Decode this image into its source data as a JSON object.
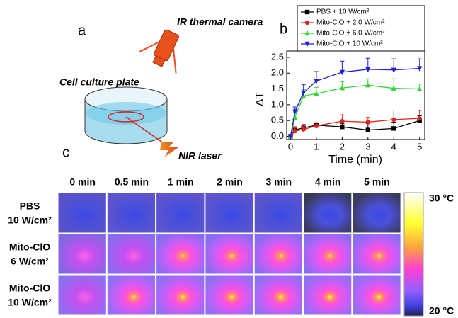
{
  "panel_a": {
    "label": "a",
    "camera": "IR thermal camera",
    "plate": "Cell culture plate",
    "laser": "NIR laser"
  },
  "chart_data": {
    "type": "line",
    "panel_label": "b",
    "xlabel": "Time (min)",
    "ylabel": "ΔT",
    "x": [
      0,
      0.17,
      0.5,
      1,
      2,
      3,
      4,
      5
    ],
    "series": [
      {
        "name": "PBS + 10 W/cm²",
        "color": "#000000",
        "marker": "square",
        "values": [
          0,
          0.2,
          0.27,
          0.35,
          0.3,
          0.2,
          0.25,
          0.5
        ],
        "errors": [
          0.05,
          0.1,
          0.1,
          0.08,
          0.1,
          0.2,
          0.2,
          0.15
        ]
      },
      {
        "name": "Mito-ClO + 2.0 W/cm²",
        "color": "#e3231c",
        "marker": "circle",
        "values": [
          0,
          0.17,
          0.22,
          0.33,
          0.48,
          0.45,
          0.53,
          0.57
        ],
        "errors": [
          0.05,
          0.1,
          0.1,
          0.1,
          0.2,
          0.15,
          0.3,
          0.25
        ]
      },
      {
        "name": "Mito-ClO + 6.0 W/cm²",
        "color": "#33d633",
        "marker": "triangle-up",
        "values": [
          0,
          0.6,
          1.28,
          1.35,
          1.53,
          1.62,
          1.52,
          1.5
        ],
        "errors": [
          0.05,
          0.15,
          0.2,
          0.2,
          0.2,
          0.2,
          0.3,
          0.15
        ]
      },
      {
        "name": "Mito-ClO + 10 W/cm²",
        "color": "#1f1fd6",
        "marker": "triangle-down",
        "values": [
          0,
          0.78,
          1.38,
          1.75,
          2.03,
          2.12,
          2.1,
          2.15
        ],
        "errors": [
          0.05,
          0.15,
          0.25,
          0.3,
          0.35,
          0.35,
          0.35,
          0.3
        ]
      }
    ],
    "xlim": [
      -0.15,
      5.2
    ],
    "xticks": [
      0,
      1,
      2,
      3,
      4,
      5
    ],
    "ylim": [
      -0.1,
      2.7
    ],
    "yticks": [
      {
        "value": 0,
        "label": "0.0"
      },
      {
        "value": 0.5,
        "label": "0.5"
      },
      {
        "value": 1,
        "label": "1.0"
      },
      {
        "value": 1.5,
        "label": "1.5"
      },
      {
        "value": 2,
        "label": "2.0"
      },
      {
        "value": 2.5,
        "label": "2.5"
      }
    ],
    "legend": "top"
  },
  "panel_c": {
    "label": "c",
    "columns": [
      "0 min",
      "0.5 min",
      "1 min",
      "2 min",
      "3 min",
      "4 min",
      "5 min"
    ],
    "rows": [
      [
        "PBS",
        "10 W/cm²"
      ],
      [
        "Mito-ClO",
        "6 W/cm²"
      ],
      [
        "Mito-ClO",
        "10 W/cm²"
      ]
    ],
    "scale_max": "30 °C",
    "scale_min": "20 °C"
  }
}
